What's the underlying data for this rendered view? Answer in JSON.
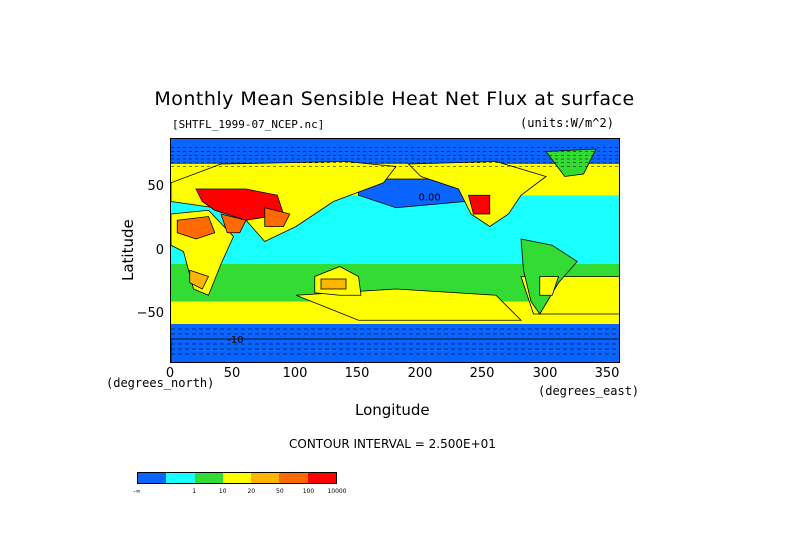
{
  "title": "Monthly Mean Sensible Heat Net Flux at surface",
  "file_label": "[SHTFL_1999-07_NCEP.nc]",
  "units_label": "(units:W/m^2)",
  "contour_interval": "CONTOUR INTERVAL = 2.500E+01",
  "chart_data": {
    "type": "heatmap",
    "title": "Monthly Mean Sensible Heat Net Flux at surface",
    "xlabel": "Longitude",
    "ylabel": "Latitude",
    "x_units": "(degrees_east)",
    "y_units": "(degrees_north)",
    "xlim": [
      0,
      360
    ],
    "ylim": [
      -90,
      90
    ],
    "x_ticks": [
      "0",
      "50",
      "100",
      "150",
      "200",
      "250",
      "300",
      "350"
    ],
    "y_ticks": [
      "50",
      "0",
      "−50"
    ],
    "colorbar": {
      "colors": [
        "#0a64ff",
        "#18ffff",
        "#32dc32",
        "#ffff00",
        "#ffb400",
        "#ff6a00",
        "#ff0000"
      ],
      "tick_labels": [
        "-∞",
        "1",
        "10",
        "20",
        "50",
        "100",
        "10000"
      ]
    },
    "annotations": [
      "0.00",
      "-10"
    ]
  }
}
